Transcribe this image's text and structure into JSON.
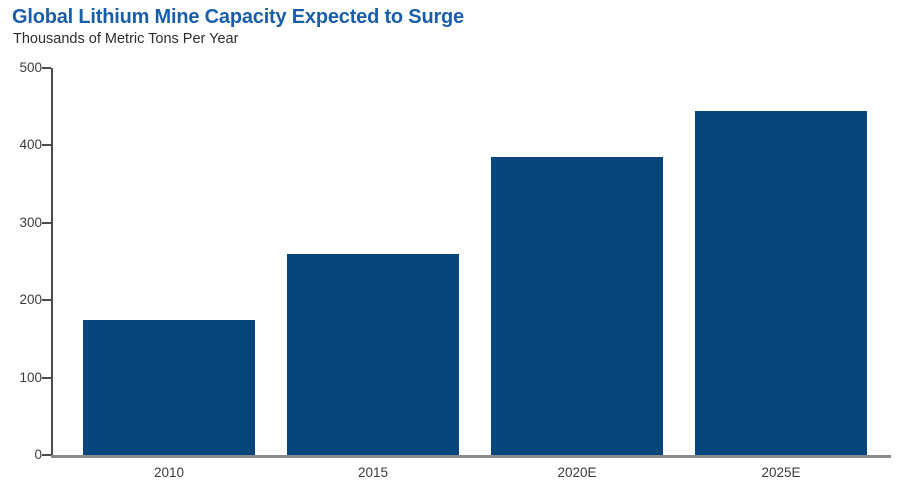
{
  "title": "Global Lithium Mine Capacity Expected to Surge",
  "subtitle": "Thousands of Metric Tons Per Year",
  "colors": {
    "bar": "#07457D",
    "title": "#1B5EA8",
    "subtitle": "#2D2D2D",
    "axis_label": "#3C3C3C",
    "axis_line": "#4C4C4C",
    "baseline": "#8A8A8A",
    "background": "#FFFFFF"
  },
  "chart_data": {
    "type": "bar",
    "title": "Global Lithium Mine Capacity Expected to Surge",
    "subtitle": "Thousands of Metric Tons Per Year",
    "categories": [
      "2010",
      "2015",
      "2020E",
      "2025E"
    ],
    "values": [
      175,
      260,
      385,
      445
    ],
    "xlabel": "",
    "ylabel": "Thousands of Metric Tons Per Year",
    "ylim": [
      0,
      500
    ],
    "yticks": [
      0,
      100,
      200,
      300,
      400,
      500
    ],
    "grid": false,
    "legend": false,
    "bar_color": "#07457D"
  }
}
